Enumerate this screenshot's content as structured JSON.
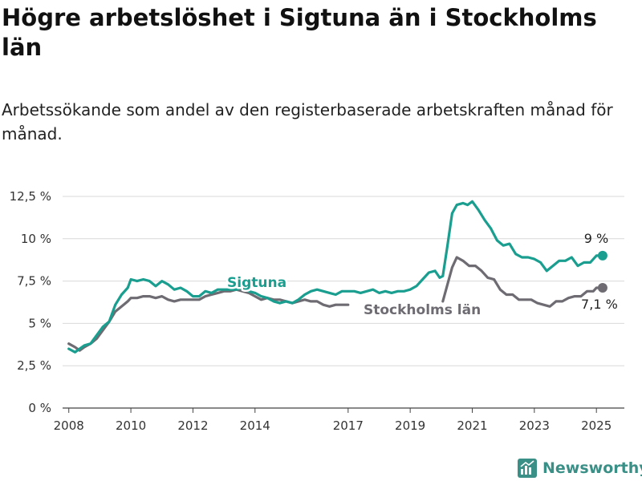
{
  "title": "Högre arbetslöshet i Sigtuna än i Stockholms län",
  "subtitle": "Arbetssökande som andel av den registerbaserade arbetskraften månad för månad.",
  "brand": "Newsworthy",
  "colors": {
    "sigtuna": "#1a9e8f",
    "stockholm": "#6e6c72",
    "grid": "#d9d9d9",
    "axis": "#444444",
    "brand": "#3a8f86"
  },
  "chart_data": {
    "type": "line",
    "ylim": [
      0,
      12.5
    ],
    "yticks": [
      0,
      2.5,
      5,
      7.5,
      10,
      12.5
    ],
    "ytick_labels": [
      "0 %",
      "2,5 %",
      "5 %",
      "7,5 %",
      "10 %",
      "12,5 %"
    ],
    "xlim": [
      2007.8,
      2025.9
    ],
    "xticks": [
      2008,
      2010,
      2012,
      2014,
      2017,
      2019,
      2021,
      2023,
      2025
    ],
    "xtick_labels": [
      "2008",
      "2010",
      "2012",
      "2014",
      "2017",
      "2019",
      "2021",
      "2023",
      "2025"
    ],
    "grid": true,
    "series": [
      {
        "name": "Sigtuna",
        "color": "#1a9e8f",
        "end_label": "9 %",
        "points": [
          [
            2008.0,
            3.5
          ],
          [
            2008.2,
            3.3
          ],
          [
            2008.35,
            3.5
          ],
          [
            2008.5,
            3.7
          ],
          [
            2008.7,
            3.8
          ],
          [
            2008.9,
            4.3
          ],
          [
            2009.1,
            4.8
          ],
          [
            2009.3,
            5.1
          ],
          [
            2009.5,
            6.1
          ],
          [
            2009.7,
            6.7
          ],
          [
            2009.9,
            7.1
          ],
          [
            2010.0,
            7.6
          ],
          [
            2010.2,
            7.5
          ],
          [
            2010.4,
            7.6
          ],
          [
            2010.6,
            7.5
          ],
          [
            2010.8,
            7.2
          ],
          [
            2011.0,
            7.5
          ],
          [
            2011.2,
            7.3
          ],
          [
            2011.4,
            7.0
          ],
          [
            2011.6,
            7.1
          ],
          [
            2011.8,
            6.9
          ],
          [
            2012.0,
            6.6
          ],
          [
            2012.2,
            6.6
          ],
          [
            2012.4,
            6.9
          ],
          [
            2012.6,
            6.8
          ],
          [
            2012.8,
            7.0
          ],
          [
            2013.0,
            7.0
          ],
          [
            2013.2,
            7.0
          ],
          [
            2013.4,
            7.0
          ],
          [
            2013.6,
            7.1
          ],
          [
            2013.8,
            6.9
          ],
          [
            2014.0,
            6.8
          ],
          [
            2014.2,
            6.6
          ],
          [
            2014.4,
            6.5
          ],
          [
            2014.6,
            6.3
          ],
          [
            2014.8,
            6.2
          ],
          [
            2015.0,
            6.3
          ],
          [
            2015.2,
            6.2
          ],
          [
            2015.4,
            6.4
          ],
          [
            2015.6,
            6.7
          ],
          [
            2015.8,
            6.9
          ],
          [
            2016.0,
            7.0
          ],
          [
            2016.2,
            6.9
          ],
          [
            2016.4,
            6.8
          ],
          [
            2016.6,
            6.7
          ],
          [
            2016.8,
            6.9
          ],
          [
            2017.0,
            6.9
          ],
          [
            2017.2,
            6.9
          ],
          [
            2017.4,
            6.8
          ],
          [
            2017.6,
            6.9
          ],
          [
            2017.8,
            7.0
          ],
          [
            2018.0,
            6.8
          ],
          [
            2018.2,
            6.9
          ],
          [
            2018.4,
            6.8
          ],
          [
            2018.6,
            6.9
          ],
          [
            2018.8,
            6.9
          ],
          [
            2019.0,
            7.0
          ],
          [
            2019.2,
            7.2
          ],
          [
            2019.4,
            7.6
          ],
          [
            2019.6,
            8.0
          ],
          [
            2019.8,
            8.1
          ],
          [
            2019.95,
            7.7
          ],
          [
            2020.05,
            7.8
          ],
          [
            2020.2,
            9.6
          ],
          [
            2020.35,
            11.5
          ],
          [
            2020.5,
            12.0
          ],
          [
            2020.7,
            12.1
          ],
          [
            2020.85,
            12.0
          ],
          [
            2021.0,
            12.2
          ],
          [
            2021.2,
            11.7
          ],
          [
            2021.4,
            11.1
          ],
          [
            2021.6,
            10.6
          ],
          [
            2021.8,
            9.9
          ],
          [
            2022.0,
            9.6
          ],
          [
            2022.2,
            9.7
          ],
          [
            2022.4,
            9.1
          ],
          [
            2022.6,
            8.9
          ],
          [
            2022.8,
            8.9
          ],
          [
            2023.0,
            8.8
          ],
          [
            2023.2,
            8.6
          ],
          [
            2023.4,
            8.1
          ],
          [
            2023.6,
            8.4
          ],
          [
            2023.8,
            8.7
          ],
          [
            2024.0,
            8.7
          ],
          [
            2024.2,
            8.9
          ],
          [
            2024.4,
            8.4
          ],
          [
            2024.6,
            8.6
          ],
          [
            2024.8,
            8.6
          ],
          [
            2025.0,
            9.0
          ],
          [
            2025.2,
            9.0
          ]
        ]
      },
      {
        "name": "Stockholms län",
        "color": "#6e6c72",
        "end_label": "7,1 %",
        "points": [
          [
            2008.0,
            3.8
          ],
          [
            2008.2,
            3.6
          ],
          [
            2008.35,
            3.4
          ],
          [
            2008.5,
            3.6
          ],
          [
            2008.7,
            3.8
          ],
          [
            2008.9,
            4.1
          ],
          [
            2009.1,
            4.6
          ],
          [
            2009.3,
            5.1
          ],
          [
            2009.5,
            5.7
          ],
          [
            2009.7,
            6.0
          ],
          [
            2009.9,
            6.3
          ],
          [
            2010.0,
            6.5
          ],
          [
            2010.2,
            6.5
          ],
          [
            2010.4,
            6.6
          ],
          [
            2010.6,
            6.6
          ],
          [
            2010.8,
            6.5
          ],
          [
            2011.0,
            6.6
          ],
          [
            2011.2,
            6.4
          ],
          [
            2011.4,
            6.3
          ],
          [
            2011.6,
            6.4
          ],
          [
            2011.8,
            6.4
          ],
          [
            2012.0,
            6.4
          ],
          [
            2012.2,
            6.4
          ],
          [
            2012.4,
            6.6
          ],
          [
            2012.6,
            6.7
          ],
          [
            2012.8,
            6.8
          ],
          [
            2013.0,
            6.9
          ],
          [
            2013.2,
            6.9
          ],
          [
            2013.4,
            7.0
          ],
          [
            2013.6,
            6.9
          ],
          [
            2013.8,
            6.8
          ],
          [
            2014.0,
            6.6
          ],
          [
            2014.2,
            6.4
          ],
          [
            2014.4,
            6.5
          ],
          [
            2014.6,
            6.4
          ],
          [
            2014.8,
            6.4
          ],
          [
            2015.0,
            6.3
          ],
          [
            2015.2,
            6.2
          ],
          [
            2015.4,
            6.3
          ],
          [
            2015.6,
            6.4
          ],
          [
            2015.8,
            6.3
          ],
          [
            2016.0,
            6.3
          ],
          [
            2016.2,
            6.1
          ],
          [
            2016.4,
            6.0
          ],
          [
            2016.6,
            6.1
          ],
          [
            2016.8,
            6.1
          ],
          [
            2017.0,
            6.1
          ]
        ],
        "points_late": [
          [
            2020.05,
            6.3
          ],
          [
            2020.2,
            7.3
          ],
          [
            2020.35,
            8.3
          ],
          [
            2020.5,
            8.9
          ],
          [
            2020.7,
            8.7
          ],
          [
            2020.9,
            8.4
          ],
          [
            2021.1,
            8.4
          ],
          [
            2021.3,
            8.1
          ],
          [
            2021.5,
            7.7
          ],
          [
            2021.7,
            7.6
          ],
          [
            2021.9,
            7.0
          ],
          [
            2022.1,
            6.7
          ],
          [
            2022.3,
            6.7
          ],
          [
            2022.5,
            6.4
          ],
          [
            2022.7,
            6.4
          ],
          [
            2022.9,
            6.4
          ],
          [
            2023.1,
            6.2
          ],
          [
            2023.3,
            6.1
          ],
          [
            2023.5,
            6.0
          ],
          [
            2023.7,
            6.3
          ],
          [
            2023.9,
            6.3
          ],
          [
            2024.1,
            6.5
          ],
          [
            2024.3,
            6.6
          ],
          [
            2024.5,
            6.6
          ],
          [
            2024.7,
            6.9
          ],
          [
            2024.9,
            6.9
          ],
          [
            2025.0,
            7.1
          ],
          [
            2025.2,
            7.1
          ]
        ]
      }
    ]
  }
}
